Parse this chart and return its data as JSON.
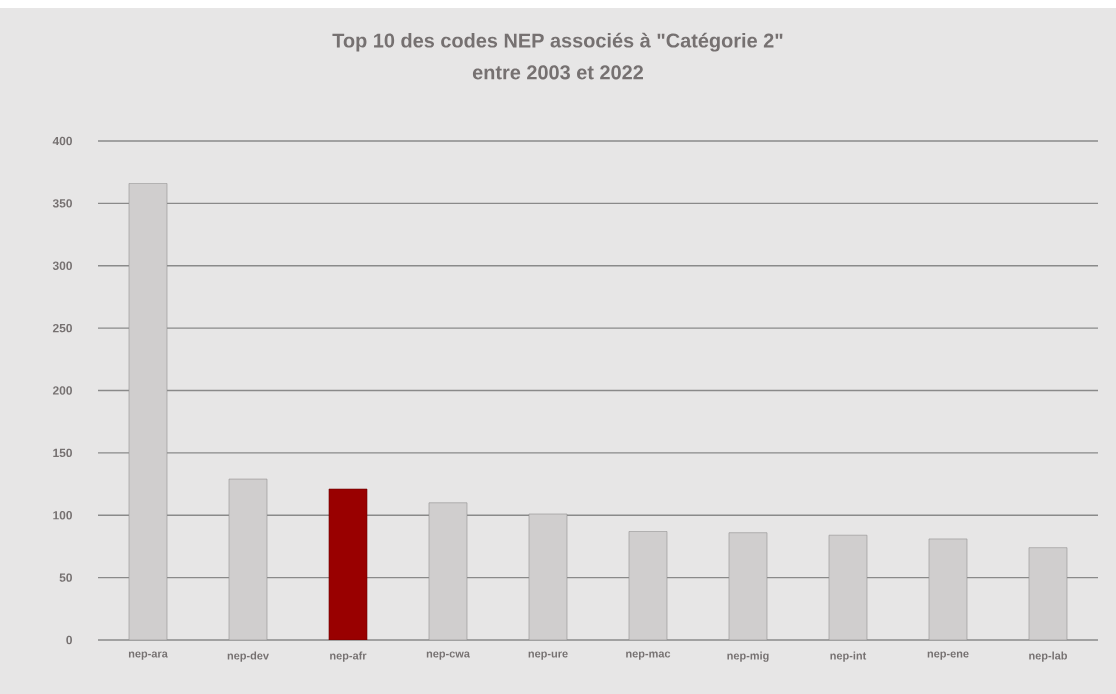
{
  "chart_data": {
    "type": "bar",
    "title": "Top 10 des codes NEP associés à \"Catégorie 2\" entre 2003 et 2022",
    "categories": [
      "nep-ara",
      "nep-dev",
      "nep-afr",
      "nep-cwa",
      "nep-ure",
      "nep-mac",
      "nep-mig",
      "nep-int",
      "nep-ene",
      "nep-lab"
    ],
    "values": [
      366,
      129,
      121,
      110,
      101,
      87,
      86,
      84,
      81,
      74
    ],
    "colors": [
      "#d0cece",
      "#d0cece",
      "#990000",
      "#d0cece",
      "#d0cece",
      "#d0cece",
      "#d0cece",
      "#d0cece",
      "#d0cece",
      "#d0cece"
    ],
    "ylim": [
      0,
      400
    ],
    "yticks": [
      0,
      50,
      100,
      150,
      200,
      250,
      300,
      350,
      400
    ],
    "grid": "y"
  }
}
